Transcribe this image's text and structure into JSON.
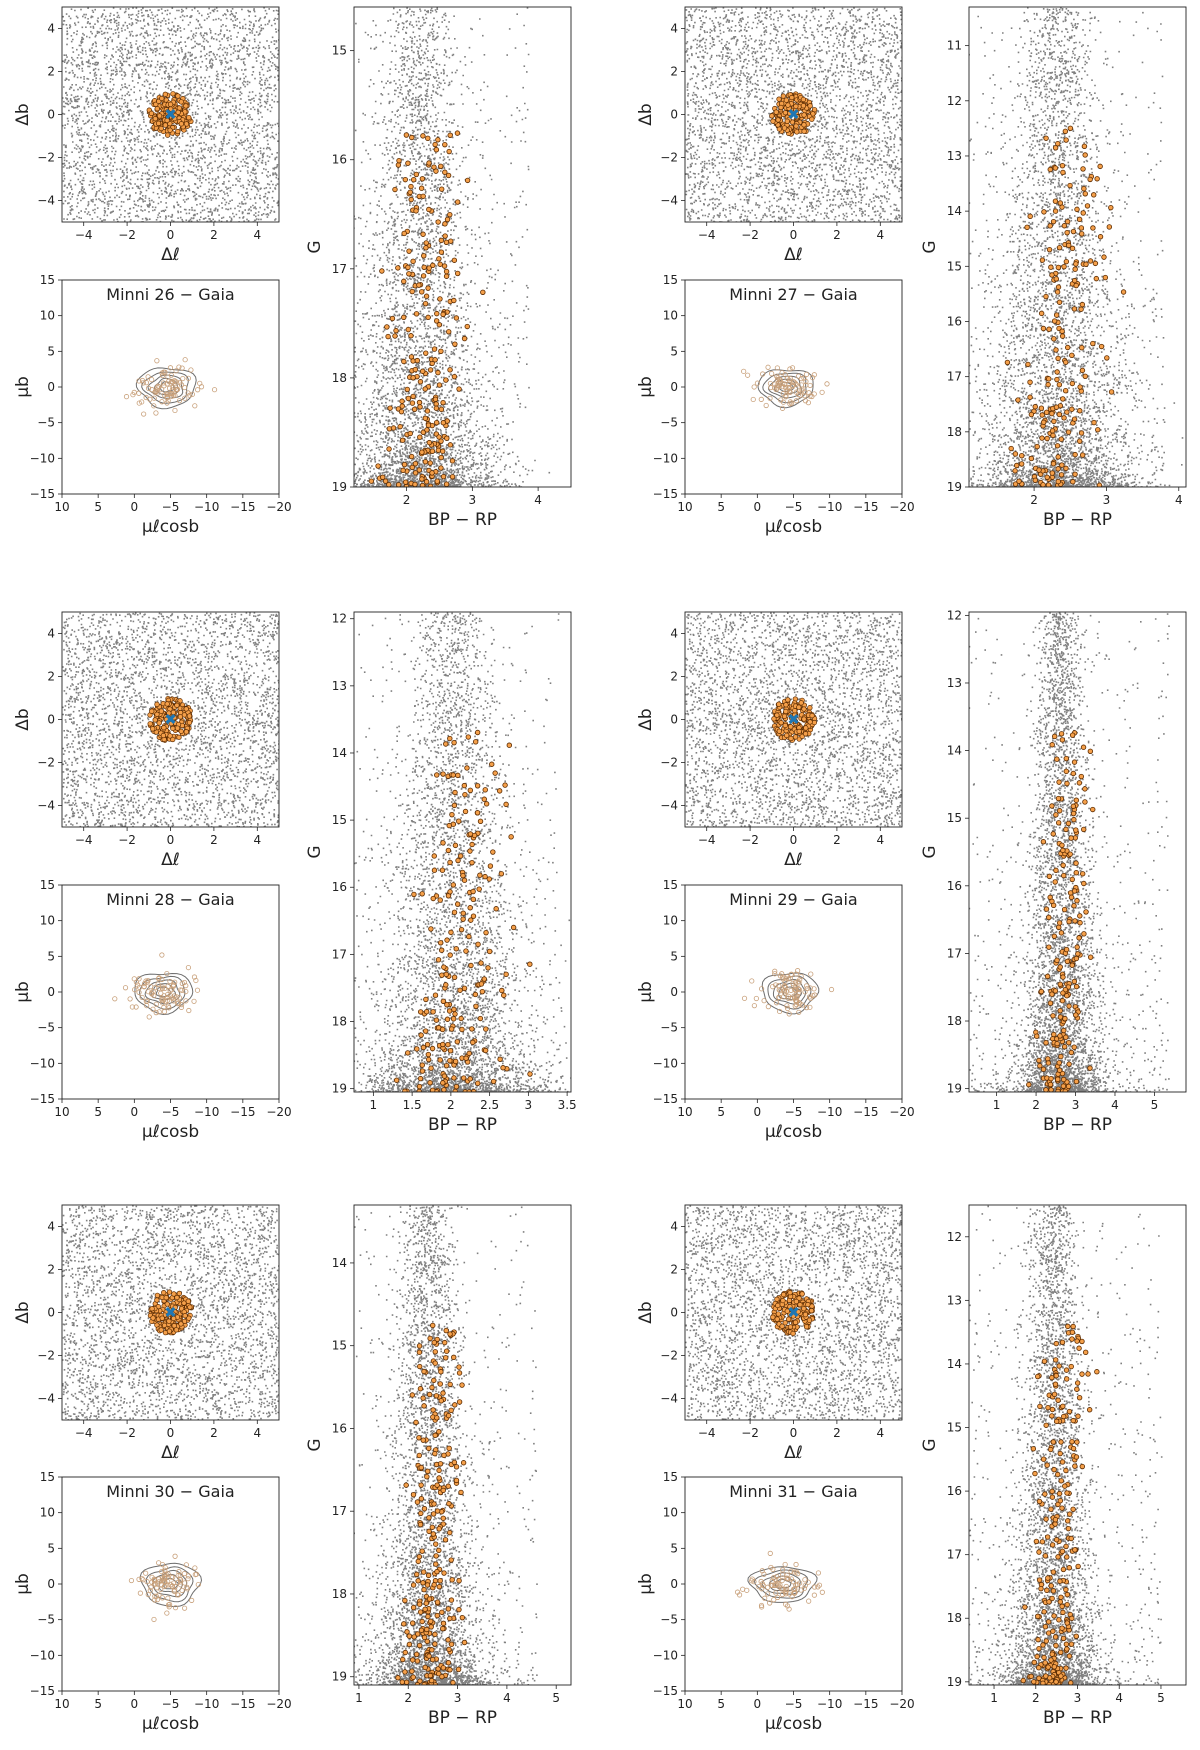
{
  "chart_data": [
    {
      "type": "scatter",
      "cluster": "Minni 26",
      "title": "Minni 26  −  Gaia",
      "sky": {
        "xlabel": "Δℓ",
        "ylabel": "Δb",
        "xlim": [
          -5,
          5
        ],
        "ylim": [
          -5,
          5
        ],
        "xticks": [
          -4,
          -2,
          0,
          2,
          4
        ],
        "yticks": [
          -4,
          -2,
          0,
          2,
          4
        ],
        "member_radius": 1.0,
        "center": [
          0,
          0
        ]
      },
      "pm": {
        "xlabel": "μℓcosb",
        "ylabel": "μb",
        "xlim": [
          10,
          -20
        ],
        "ylim": [
          -15,
          15
        ],
        "xticks": [
          10,
          5,
          0,
          -5,
          -10,
          -15,
          -20
        ],
        "yticks": [
          -15,
          -10,
          -5,
          0,
          5,
          10,
          15
        ],
        "centroid": [
          -4.5,
          0.0
        ],
        "spread": [
          4.0,
          2.8
        ]
      },
      "cmd": {
        "xlabel": "BP − RP",
        "ylabel": "G",
        "xlim": [
          1.2,
          4.5
        ],
        "ylim": [
          19,
          14.6
        ],
        "xticks": [
          2,
          3,
          4
        ],
        "yticks": [
          15,
          16,
          17,
          18,
          19
        ],
        "sequence_color": 2.2,
        "members": 240
      }
    },
    {
      "type": "scatter",
      "cluster": "Minni 27",
      "title": "Minni 27  −  Gaia",
      "sky": {
        "xlabel": "Δℓ",
        "ylabel": "Δb",
        "xlim": [
          -5,
          5
        ],
        "ylim": [
          -5,
          5
        ],
        "xticks": [
          -4,
          -2,
          0,
          2,
          4
        ],
        "yticks": [
          -4,
          -2,
          0,
          2,
          4
        ],
        "member_radius": 1.0,
        "center": [
          0,
          0
        ]
      },
      "pm": {
        "xlabel": "μℓcosb",
        "ylabel": "μb",
        "xlim": [
          10,
          -20
        ],
        "ylim": [
          -15,
          15
        ],
        "xticks": [
          10,
          5,
          0,
          -5,
          -10,
          -15,
          -20
        ],
        "yticks": [
          -15,
          -10,
          -5,
          0,
          5,
          10,
          15
        ],
        "centroid": [
          -4.0,
          0.0
        ],
        "spread": [
          3.8,
          2.6
        ]
      },
      "cmd": {
        "xlabel": "BP − RP",
        "ylabel": "G",
        "xlim": [
          1.1,
          4.1
        ],
        "ylim": [
          19,
          10.3
        ],
        "xticks": [
          2,
          3,
          4
        ],
        "yticks": [
          11,
          12,
          13,
          14,
          15,
          16,
          17,
          18,
          19
        ],
        "sequence_color": 2.3,
        "members": 200
      }
    },
    {
      "type": "scatter",
      "cluster": "Minni 28",
      "title": "Minni 28  −  Gaia",
      "sky": {
        "xlabel": "Δℓ",
        "ylabel": "Δb",
        "xlim": [
          -5,
          5
        ],
        "ylim": [
          -5,
          5
        ],
        "xticks": [
          -4,
          -2,
          0,
          2,
          4
        ],
        "yticks": [
          -4,
          -2,
          0,
          2,
          4
        ],
        "member_radius": 1.0,
        "center": [
          0,
          0
        ]
      },
      "pm": {
        "xlabel": "μℓcosb",
        "ylabel": "μb",
        "xlim": [
          10,
          -20
        ],
        "ylim": [
          -15,
          15
        ],
        "xticks": [
          10,
          5,
          0,
          -5,
          -10,
          -15,
          -20
        ],
        "yticks": [
          -15,
          -10,
          -5,
          0,
          5,
          10,
          15
        ],
        "centroid": [
          -4.0,
          0.0
        ],
        "spread": [
          4.0,
          2.8
        ]
      },
      "cmd": {
        "xlabel": "BP − RP",
        "ylabel": "G",
        "xlim": [
          0.75,
          3.55
        ],
        "ylim": [
          19.05,
          11.9
        ],
        "xticks": [
          1.0,
          1.5,
          2.0,
          2.5,
          3.0,
          3.5
        ],
        "yticks": [
          12,
          13,
          14,
          15,
          16,
          17,
          18,
          19
        ],
        "sequence_color": 2.0,
        "members": 220
      }
    },
    {
      "type": "scatter",
      "cluster": "Minni 29",
      "title": "Minni 29  −  Gaia",
      "sky": {
        "xlabel": "Δℓ",
        "ylabel": "Δb",
        "xlim": [
          -5,
          5
        ],
        "ylim": [
          -5,
          5
        ],
        "xticks": [
          -4,
          -2,
          0,
          2,
          4
        ],
        "yticks": [
          -4,
          -2,
          0,
          2,
          4
        ],
        "member_radius": 1.0,
        "center": [
          0,
          0
        ]
      },
      "pm": {
        "xlabel": "μℓcosb",
        "ylabel": "μb",
        "xlim": [
          10,
          -20
        ],
        "ylim": [
          -15,
          15
        ],
        "xticks": [
          10,
          5,
          0,
          -5,
          -10,
          -15,
          -20
        ],
        "yticks": [
          -15,
          -10,
          -5,
          0,
          5,
          10,
          15
        ],
        "centroid": [
          -4.5,
          0.0
        ],
        "spread": [
          3.8,
          2.8
        ]
      },
      "cmd": {
        "xlabel": "BP − RP",
        "ylabel": "G",
        "xlim": [
          0.3,
          5.8
        ],
        "ylim": [
          19.05,
          11.95
        ],
        "xticks": [
          1,
          2,
          3,
          4,
          5
        ],
        "yticks": [
          12,
          13,
          14,
          15,
          16,
          17,
          18,
          19
        ],
        "sequence_color": 2.6,
        "members": 200
      }
    },
    {
      "type": "scatter",
      "cluster": "Minni 30",
      "title": "Minni 30  −  Gaia",
      "sky": {
        "xlabel": "Δℓ",
        "ylabel": "Δb",
        "xlim": [
          -5,
          5
        ],
        "ylim": [
          -5,
          5
        ],
        "xticks": [
          -4,
          -2,
          0,
          2,
          4
        ],
        "yticks": [
          -4,
          -2,
          0,
          2,
          4
        ],
        "member_radius": 1.0,
        "center": [
          0,
          0
        ]
      },
      "pm": {
        "xlabel": "μℓcosb",
        "ylabel": "μb",
        "xlim": [
          10,
          -20
        ],
        "ylim": [
          -15,
          15
        ],
        "xticks": [
          10,
          5,
          0,
          -5,
          -10,
          -15,
          -20
        ],
        "yticks": [
          -15,
          -10,
          -5,
          0,
          5,
          10,
          15
        ],
        "centroid": [
          -5.0,
          0.0
        ],
        "spread": [
          4.0,
          3.0
        ]
      },
      "cmd": {
        "xlabel": "BP − RP",
        "ylabel": "G",
        "xlim": [
          0.9,
          5.3
        ],
        "ylim": [
          19.1,
          13.3
        ],
        "xticks": [
          1,
          2,
          3,
          4,
          5
        ],
        "yticks": [
          14,
          15,
          16,
          17,
          18,
          19
        ],
        "sequence_color": 2.4,
        "members": 260
      }
    },
    {
      "type": "scatter",
      "cluster": "Minni 31",
      "title": "Minni 31  −  Gaia",
      "sky": {
        "xlabel": "Δℓ",
        "ylabel": "Δb",
        "xlim": [
          -5,
          5
        ],
        "ylim": [
          -5,
          5
        ],
        "xticks": [
          -4,
          -2,
          0,
          2,
          4
        ],
        "yticks": [
          -4,
          -2,
          0,
          2,
          4
        ],
        "member_radius": 1.0,
        "center": [
          0,
          0
        ]
      },
      "pm": {
        "xlabel": "μℓcosb",
        "ylabel": "μb",
        "xlim": [
          10,
          -20
        ],
        "ylim": [
          -15,
          15
        ],
        "xticks": [
          10,
          5,
          0,
          -5,
          -10,
          -15,
          -20
        ],
        "yticks": [
          -15,
          -10,
          -5,
          0,
          5,
          10,
          15
        ],
        "centroid": [
          -3.5,
          0.0
        ],
        "spread": [
          4.5,
          2.5
        ]
      },
      "cmd": {
        "xlabel": "BP − RP",
        "ylabel": "G",
        "xlim": [
          0.4,
          5.6
        ],
        "ylim": [
          19.05,
          11.5
        ],
        "xticks": [
          1,
          2,
          3,
          4,
          5
        ],
        "yticks": [
          12,
          13,
          14,
          15,
          16,
          17,
          18,
          19
        ],
        "sequence_color": 2.4,
        "members": 250
      }
    }
  ],
  "colors": {
    "field": "#808080",
    "member_fill": "#f5a04a",
    "member_edge": "#5a2a00",
    "center_marker": "#1f77b4",
    "contour": "#6e6e6e",
    "pm_member": "#c8a07a"
  }
}
